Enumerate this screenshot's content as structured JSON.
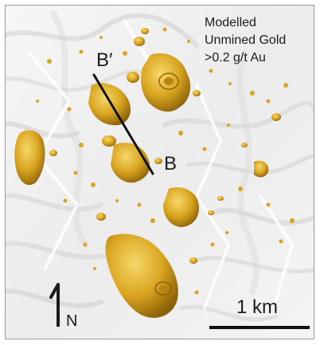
{
  "legend": {
    "line1": "Modelled",
    "line2": "Unmined Gold",
    "line3": ">0.2 g/t Au"
  },
  "section": {
    "start_label": "B′",
    "end_label": "B"
  },
  "north_arrow": {
    "label": "N"
  },
  "scale_bar": {
    "label": "1 km"
  },
  "colors": {
    "terrain_light": "#f2f2f2",
    "terrain_shadow": "#bdbdbd",
    "gold": "#d9a520",
    "gold_dark": "#9c6f0e",
    "gold_light": "#f2cd5c",
    "ink": "#1b1b1b"
  }
}
